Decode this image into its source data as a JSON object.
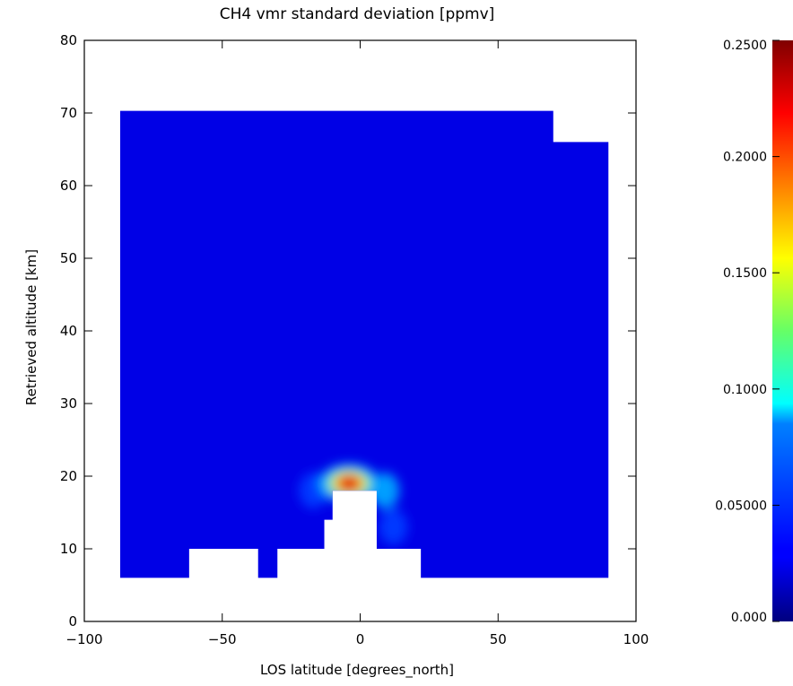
{
  "chart_data": {
    "type": "heatmap",
    "title": "CH4 vmr standard deviation [ppmv]",
    "xlabel": "LOS latitude [degrees_north]",
    "ylabel": "Retrieved altitude [km]",
    "xlim": [
      -100,
      100
    ],
    "ylim": [
      0,
      80
    ],
    "xticks": [
      -100,
      -50,
      0,
      50,
      100
    ],
    "xtick_labels": [
      "−100",
      "−50",
      "0",
      "50",
      "100"
    ],
    "yticks": [
      0,
      10,
      20,
      30,
      40,
      50,
      60,
      70,
      80
    ],
    "ytick_labels": [
      "0",
      "10",
      "20",
      "30",
      "40",
      "50",
      "60",
      "70",
      "80"
    ],
    "colorbar": {
      "range": [
        0,
        0.25
      ],
      "colormap": "jet",
      "ticks": [
        0,
        0.05,
        0.1,
        0.15,
        0.2,
        0.25
      ],
      "tick_labels": [
        "0.000",
        "0.05000",
        "0.1000",
        "0.1500",
        "0.2000",
        "0.2500"
      ]
    },
    "coverage": {
      "top_altitude_km": [
        {
          "lat_range": [
            -87,
            70
          ],
          "alt": 70.3
        },
        {
          "lat_range": [
            70,
            90
          ],
          "alt": 66
        }
      ],
      "bottom_altitude_km": [
        {
          "lat_range": [
            -87,
            -62
          ],
          "alt": 6
        },
        {
          "lat_range": [
            -62,
            -37
          ],
          "alt": 10
        },
        {
          "lat_range": [
            -37,
            -30
          ],
          "alt": 6
        },
        {
          "lat_range": [
            -30,
            -13
          ],
          "alt": 10
        },
        {
          "lat_range": [
            -13,
            -10
          ],
          "alt": 14
        },
        {
          "lat_range": [
            -10,
            6
          ],
          "alt": 18
        },
        {
          "lat_range": [
            6,
            22
          ],
          "alt": 10
        },
        {
          "lat_range": [
            22,
            90
          ],
          "alt": 6
        }
      ]
    },
    "background_value": 0.025,
    "features": [
      {
        "lat": -4,
        "alt": 19,
        "peak_value": 0.23,
        "description": "maximum"
      },
      {
        "lat": 9,
        "alt": 18,
        "peak_value": 0.07
      },
      {
        "lat": -17,
        "alt": 18,
        "peak_value": 0.045
      },
      {
        "lat": 12,
        "alt": 13,
        "peak_value": 0.045
      }
    ]
  }
}
